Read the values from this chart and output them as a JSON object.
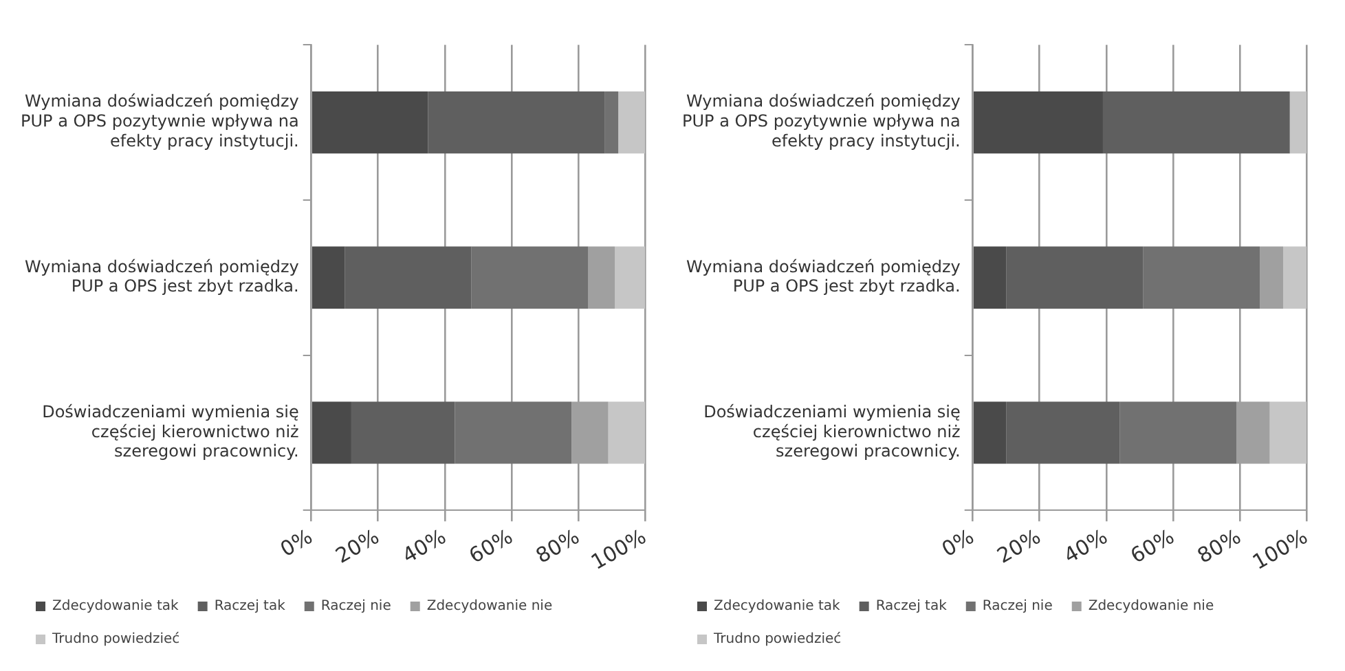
{
  "chart_data": [
    {
      "type": "bar",
      "orientation": "horizontal",
      "stacked": true,
      "categories": [
        "Wymiana doświadczeń pomiędzy PUP a OPS pozytywnie wpływa na efekty pracy instytucji.",
        "Wymiana doświadczeń pomiędzy PUP a OPS jest zbyt rzadka.",
        "Doświadczeniami wymienia się częściej kierownictwo niż szeregowi pracownicy."
      ],
      "series": [
        {
          "name": "Zdecydowanie tak",
          "color": "#4a4a4a",
          "values": [
            35,
            10,
            12
          ]
        },
        {
          "name": "Raczej tak",
          "color": "#5f5f5f",
          "values": [
            53,
            38,
            31
          ]
        },
        {
          "name": "Raczej nie",
          "color": "#717171",
          "values": [
            4,
            35,
            35
          ]
        },
        {
          "name": "Zdecydowanie nie",
          "color": "#a0a0a0",
          "values": [
            0,
            8,
            11
          ]
        },
        {
          "name": "Trudno powiedzieć",
          "color": "#c6c6c6",
          "values": [
            8,
            9,
            11
          ]
        }
      ],
      "xlim": [
        0,
        100
      ],
      "xticks": [
        {
          "value": 0,
          "label": "0%"
        },
        {
          "value": 20,
          "label": "20%"
        },
        {
          "value": 40,
          "label": "40%"
        },
        {
          "value": 60,
          "label": "60%"
        },
        {
          "value": 80,
          "label": "80%"
        },
        {
          "value": 100,
          "label": "100%"
        }
      ],
      "grid": "x",
      "legend": "bottom"
    },
    {
      "type": "bar",
      "orientation": "horizontal",
      "stacked": true,
      "categories": [
        "Wymiana doświadczeń pomiędzy PUP a OPS pozytywnie wpływa na efekty pracy instytucji.",
        "Wymiana doświadczeń pomiędzy PUP a OPS jest zbyt rzadka.",
        "Doświadczeniami wymienia się częściej kierownictwo niż szeregowi pracownicy."
      ],
      "series": [
        {
          "name": "Zdecydowanie tak",
          "color": "#4a4a4a",
          "values": [
            39,
            10,
            10
          ]
        },
        {
          "name": "Raczej tak",
          "color": "#5f5f5f",
          "values": [
            56,
            41,
            34
          ]
        },
        {
          "name": "Raczej nie",
          "color": "#717171",
          "values": [
            0,
            35,
            35
          ]
        },
        {
          "name": "Zdecydowanie nie",
          "color": "#a0a0a0",
          "values": [
            0,
            7,
            10
          ]
        },
        {
          "name": "Trudno powiedzieć",
          "color": "#c6c6c6",
          "values": [
            5,
            7,
            11
          ]
        }
      ],
      "xlim": [
        0,
        100
      ],
      "xticks": [
        {
          "value": 0,
          "label": "0%"
        },
        {
          "value": 20,
          "label": "20%"
        },
        {
          "value": 40,
          "label": "40%"
        },
        {
          "value": 60,
          "label": "60%"
        },
        {
          "value": 80,
          "label": "80%"
        },
        {
          "value": 100,
          "label": "100%"
        }
      ],
      "grid": "x",
      "legend": "bottom"
    }
  ]
}
